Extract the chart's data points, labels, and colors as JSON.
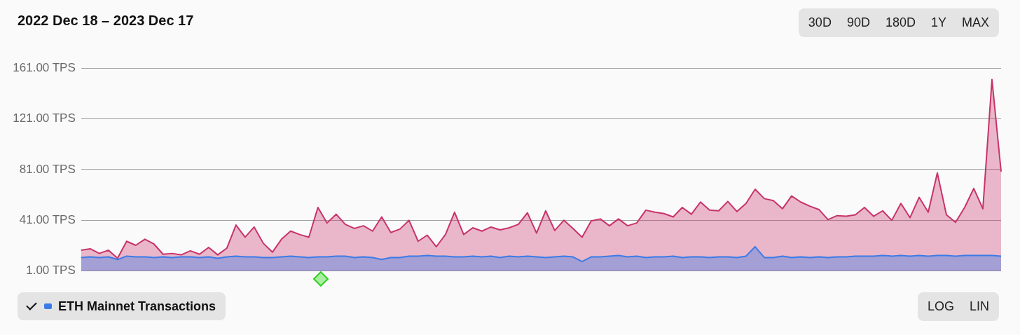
{
  "chart_data": {
    "type": "area",
    "title": "2022 Dec 18 – 2023 Dec 17",
    "categories": [
      null,
      null,
      null,
      null,
      null,
      null,
      null,
      null,
      null,
      null,
      null,
      null,
      null,
      null,
      null,
      null,
      null,
      null,
      null,
      null,
      null,
      null,
      null,
      null,
      null,
      null,
      null,
      null,
      null,
      null,
      null,
      null,
      null,
      null,
      null,
      null,
      null,
      null,
      null,
      null,
      null,
      null,
      null,
      null,
      null,
      null,
      null,
      null,
      null,
      null,
      null,
      null,
      null,
      null,
      null,
      null,
      null,
      null,
      null,
      null,
      null,
      null,
      null,
      null,
      null,
      null,
      null,
      null,
      null,
      null,
      null,
      null,
      null,
      null,
      null,
      null,
      null,
      null,
      null,
      null,
      null,
      null,
      null,
      null,
      null,
      null,
      null,
      null,
      null,
      null,
      null,
      null,
      null,
      null,
      null,
      null,
      null,
      null,
      null,
      null,
      null,
      null
    ],
    "series": [
      {
        "color": "#c8336a",
        "values": [
          17.5,
          18.6,
          14.9,
          17.5,
          11.1,
          24.5,
          21.3,
          26.1,
          22.3,
          14.3,
          14.9,
          13.8,
          17.0,
          14.3,
          19.7,
          13.8,
          19.1,
          37.3,
          27.7,
          35.7,
          22.9,
          15.9,
          26.1,
          32.5,
          29.8,
          27.7,
          51.1,
          38.9,
          45.8,
          37.8,
          34.6,
          36.7,
          32.5,
          43.7,
          31.4,
          34.1,
          41.0,
          24.5,
          29.3,
          20.2,
          29.8,
          47.4,
          29.8,
          35.1,
          32.5,
          35.7,
          33.5,
          35.1,
          37.8,
          46.9,
          30.9,
          48.5,
          33.0,
          41.0,
          34.6,
          27.7,
          40.5,
          42.1,
          36.7,
          42.1,
          36.7,
          38.9,
          49.0,
          47.4,
          46.3,
          43.7,
          51.1,
          45.8,
          55.4,
          49.0,
          48.5,
          55.9,
          47.9,
          54.3,
          65.5,
          58.1,
          56.5,
          50.1,
          60.2,
          55.4,
          52.2,
          49.5,
          41.5,
          44.7,
          44.2,
          45.3,
          51.1,
          44.2,
          48.5,
          41.0,
          54.3,
          43.1,
          59.1,
          47.4,
          78.3,
          45.3,
          39.4,
          51.1,
          66.1,
          50.1,
          151.9,
          79.4
        ]
      },
      {
        "name": "ETH Mainnet Transactions",
        "color": "#3b7be8",
        "values": [
          11.7,
          12.2,
          11.7,
          12.2,
          10.1,
          12.8,
          12.2,
          12.2,
          11.7,
          12.2,
          11.7,
          12.2,
          12.2,
          11.7,
          12.2,
          11.1,
          12.2,
          12.8,
          12.2,
          12.2,
          11.7,
          11.7,
          12.2,
          12.8,
          12.2,
          11.7,
          12.2,
          12.2,
          12.8,
          12.8,
          11.7,
          12.2,
          11.7,
          10.1,
          11.7,
          11.7,
          12.8,
          12.8,
          13.3,
          12.8,
          12.8,
          12.2,
          12.2,
          12.8,
          12.2,
          12.8,
          11.7,
          12.8,
          12.2,
          12.8,
          12.2,
          11.7,
          12.2,
          12.8,
          12.2,
          8.5,
          12.2,
          12.2,
          12.8,
          13.3,
          12.2,
          12.8,
          11.7,
          12.2,
          12.2,
          12.8,
          11.7,
          12.2,
          12.2,
          11.7,
          12.2,
          12.2,
          11.7,
          12.8,
          20.2,
          11.7,
          11.7,
          12.8,
          11.7,
          12.2,
          11.7,
          12.2,
          11.7,
          12.2,
          12.2,
          12.8,
          12.8,
          12.8,
          13.3,
          12.8,
          13.3,
          12.8,
          13.3,
          12.8,
          13.3,
          13.3,
          12.8,
          13.3,
          13.3,
          13.3,
          13.3,
          12.8
        ]
      }
    ],
    "ylim": [
      1,
      161
    ],
    "yticks": [
      {
        "value": 1,
        "label": "1.00 TPS"
      },
      {
        "value": 41,
        "label": "41.00 TPS"
      },
      {
        "value": 81,
        "label": "81.00 TPS"
      },
      {
        "value": 121,
        "label": "121.00 TPS"
      },
      {
        "value": 161,
        "label": "161.00 TPS"
      }
    ],
    "grid": "y",
    "tick_labels": "y",
    "legend": "bottom left",
    "marker": "none",
    "annotations": [
      "30D",
      "90D",
      "180D",
      "1Y",
      "MAX",
      "LOG",
      "LIN"
    ]
  }
}
